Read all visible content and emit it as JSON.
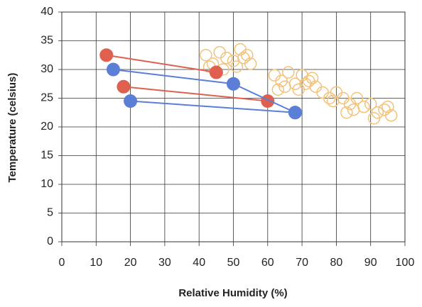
{
  "chart_data": {
    "type": "scatter",
    "x_label": "Relative Humidity (%)",
    "y_label": "Temperature (celsius)",
    "xlim": [
      0,
      100
    ],
    "ylim": [
      0,
      40
    ],
    "xticks": [
      0,
      10,
      20,
      30,
      40,
      50,
      60,
      70,
      80,
      90,
      100
    ],
    "yticks": [
      0,
      5,
      10,
      15,
      20,
      25,
      30,
      35,
      40
    ],
    "grid": true,
    "series": [
      {
        "color": "#f2c27a",
        "marker": "open",
        "connect": false,
        "x": [
          42,
          44,
          46,
          48,
          50,
          52,
          53,
          55,
          43,
          47,
          51,
          54,
          62,
          64,
          66,
          68,
          70,
          72,
          74,
          76,
          78,
          80,
          82,
          84,
          86,
          88,
          90,
          92,
          94,
          96,
          65,
          69,
          73,
          79,
          85,
          91,
          95,
          63,
          71,
          83
        ],
        "y": [
          32.5,
          31,
          33,
          32,
          31.5,
          33.5,
          32,
          31,
          30.5,
          30,
          30.5,
          32.5,
          29,
          28,
          29.5,
          27.5,
          29,
          28,
          27,
          26,
          25,
          26,
          25,
          24,
          25,
          23.5,
          24,
          22.5,
          23,
          22,
          27,
          26.5,
          28.5,
          24.5,
          23,
          21.5,
          23.5,
          26.5,
          27.5,
          22.5
        ]
      },
      {
        "color": "#e0604f",
        "marker": "filled",
        "connect": true,
        "x": [
          13,
          45,
          null,
          18,
          60
        ],
        "y": [
          32.5,
          29.5,
          null,
          27,
          24.5
        ]
      },
      {
        "color": "#5b7fd6",
        "marker": "filled",
        "connect": true,
        "x": [
          15,
          50,
          68,
          null,
          20,
          68
        ],
        "y": [
          30,
          27.5,
          22.5,
          null,
          24.5,
          22.5
        ]
      }
    ]
  }
}
